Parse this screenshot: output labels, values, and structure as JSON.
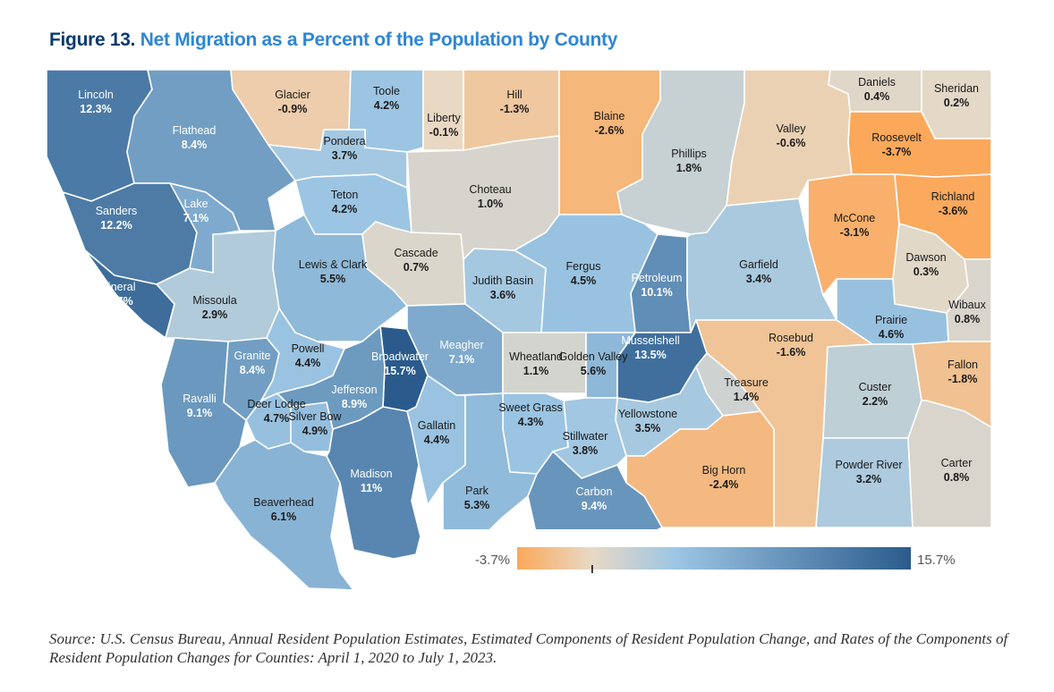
{
  "figure": {
    "label": "Figure 13.",
    "title": "Net Migration as a Percent of the Population by County"
  },
  "legend": {
    "min_label": "-3.7%",
    "max_label": "15.7%",
    "min_value": -3.7,
    "max_value": 15.7,
    "colors": {
      "low": "#fba85a",
      "zero": "#e8d9c6",
      "mid": "#9dc6e4",
      "high": "#2a5b8c"
    }
  },
  "counties": [
    {
      "name": "Lincoln",
      "value": 12.3,
      "label": "12.3%"
    },
    {
      "name": "Flathead",
      "value": 8.4,
      "label": "8.4%"
    },
    {
      "name": "Glacier",
      "value": -0.9,
      "label": "-0.9%"
    },
    {
      "name": "Toole",
      "value": 4.2,
      "label": "4.2%"
    },
    {
      "name": "Liberty",
      "value": -0.1,
      "label": "-0.1%"
    },
    {
      "name": "Hill",
      "value": -1.3,
      "label": "-1.3%"
    },
    {
      "name": "Blaine",
      "value": -2.6,
      "label": "-2.6%"
    },
    {
      "name": "Phillips",
      "value": 1.8,
      "label": "1.8%"
    },
    {
      "name": "Valley",
      "value": -0.6,
      "label": "-0.6%"
    },
    {
      "name": "Daniels",
      "value": 0.4,
      "label": "0.4%"
    },
    {
      "name": "Sheridan",
      "value": 0.2,
      "label": "0.2%"
    },
    {
      "name": "Roosevelt",
      "value": -3.7,
      "label": "-3.7%"
    },
    {
      "name": "Pondera",
      "value": 3.7,
      "label": "3.7%"
    },
    {
      "name": "Teton",
      "value": 4.2,
      "label": "4.2%"
    },
    {
      "name": "Choteau",
      "value": 1.0,
      "label": "1.0%"
    },
    {
      "name": "Sanders",
      "value": 12.2,
      "label": "12.2%"
    },
    {
      "name": "Lake",
      "value": 7.1,
      "label": "7.1%"
    },
    {
      "name": "Mineral",
      "value": 13.7,
      "label": "13.7%"
    },
    {
      "name": "Missoula",
      "value": 2.9,
      "label": "2.9%"
    },
    {
      "name": "Lewis & Clark",
      "value": 5.5,
      "label": "5.5%"
    },
    {
      "name": "Cascade",
      "value": 0.7,
      "label": "0.7%"
    },
    {
      "name": "Judith Basin",
      "value": 3.6,
      "label": "3.6%"
    },
    {
      "name": "Fergus",
      "value": 4.5,
      "label": "4.5%"
    },
    {
      "name": "Petroleum",
      "value": 10.1,
      "label": "10.1%"
    },
    {
      "name": "Garfield",
      "value": 3.4,
      "label": "3.4%"
    },
    {
      "name": "McCone",
      "value": -3.1,
      "label": "-3.1%"
    },
    {
      "name": "Richland",
      "value": -3.6,
      "label": "-3.6%"
    },
    {
      "name": "Dawson",
      "value": 0.3,
      "label": "0.3%"
    },
    {
      "name": "Wibaux",
      "value": 0.8,
      "label": "0.8%"
    },
    {
      "name": "Prairie",
      "value": 4.6,
      "label": "4.6%"
    },
    {
      "name": "Granite",
      "value": 8.4,
      "label": "8.4%"
    },
    {
      "name": "Powell",
      "value": 4.4,
      "label": "4.4%"
    },
    {
      "name": "Broadwater",
      "value": 15.7,
      "label": "15.7%"
    },
    {
      "name": "Meagher",
      "value": 7.1,
      "label": "7.1%"
    },
    {
      "name": "Wheatland",
      "value": 1.1,
      "label": "1.1%"
    },
    {
      "name": "Golden Valley",
      "value": 5.6,
      "label": "5.6%"
    },
    {
      "name": "Musselshell",
      "value": 13.5,
      "label": "13.5%"
    },
    {
      "name": "Rosebud",
      "value": -1.6,
      "label": "-1.6%"
    },
    {
      "name": "Treasure",
      "value": 1.4,
      "label": "1.4%"
    },
    {
      "name": "Custer",
      "value": 2.2,
      "label": "2.2%"
    },
    {
      "name": "Fallon",
      "value": -1.8,
      "label": "-1.8%"
    },
    {
      "name": "Ravalli",
      "value": 9.1,
      "label": "9.1%"
    },
    {
      "name": "Deer Lodge",
      "value": 4.7,
      "label": "4.7%"
    },
    {
      "name": "Silver Bow",
      "value": 4.9,
      "label": "4.9%"
    },
    {
      "name": "Jefferson",
      "value": 8.9,
      "label": "8.9%"
    },
    {
      "name": "Gallatin",
      "value": 4.4,
      "label": "4.4%"
    },
    {
      "name": "Sweet Grass",
      "value": 4.3,
      "label": "4.3%"
    },
    {
      "name": "Stillwater",
      "value": 3.8,
      "label": "3.8%"
    },
    {
      "name": "Yellowstone",
      "value": 3.5,
      "label": "3.5%"
    },
    {
      "name": "Big Horn",
      "value": -2.4,
      "label": "-2.4%"
    },
    {
      "name": "Powder River",
      "value": 3.2,
      "label": "3.2%"
    },
    {
      "name": "Carter",
      "value": 0.8,
      "label": "0.8%"
    },
    {
      "name": "Beaverhead",
      "value": 6.1,
      "label": "6.1%"
    },
    {
      "name": "Madison",
      "value": 11,
      "label": "11%"
    },
    {
      "name": "Park",
      "value": 5.3,
      "label": "5.3%"
    },
    {
      "name": "Carbon",
      "value": 9.4,
      "label": "9.4%"
    }
  ],
  "source": "Source: U.S. Census Bureau, Annual Resident Population Estimates, Estimated Components of Resident Population Change, and Rates of the Components of Resident Population Changes for Counties: April 1, 2020 to July 1, 2023."
}
